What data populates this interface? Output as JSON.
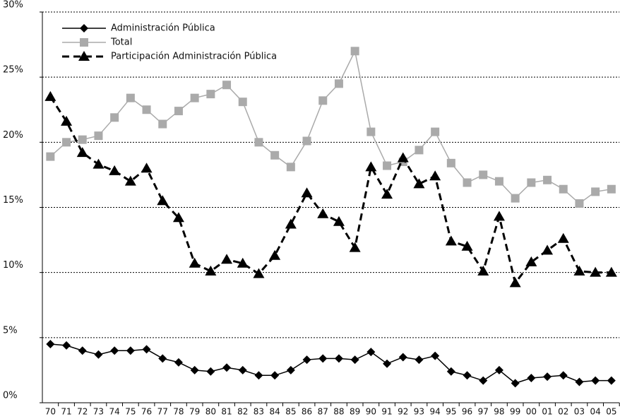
{
  "chart_data": {
    "type": "line",
    "categories": [
      "70",
      "71",
      "72",
      "73",
      "74",
      "75",
      "76",
      "77",
      "78",
      "79",
      "80",
      "81",
      "82",
      "83",
      "84",
      "85",
      "86",
      "87",
      "88",
      "89",
      "90",
      "91",
      "92",
      "93",
      "94",
      "95",
      "96",
      "97",
      "98",
      "99",
      "00",
      "01",
      "02",
      "03",
      "04",
      "05"
    ],
    "series": [
      {
        "name": "Administración Pública",
        "color": "#000000",
        "marker": "diamond",
        "dashed": false,
        "values": [
          4.5,
          4.4,
          4.0,
          3.7,
          4.0,
          4.0,
          4.1,
          3.4,
          3.1,
          2.5,
          2.4,
          2.7,
          2.5,
          2.1,
          2.1,
          2.5,
          3.3,
          3.4,
          3.4,
          3.3,
          3.9,
          3.0,
          3.5,
          3.3,
          3.6,
          2.4,
          2.1,
          1.7,
          2.5,
          1.5,
          1.9,
          2.0,
          2.1,
          1.6,
          1.7,
          1.7
        ]
      },
      {
        "name": "Total",
        "color": "#aaaaaa",
        "marker": "square",
        "dashed": false,
        "values": [
          18.9,
          20.0,
          20.2,
          20.5,
          21.9,
          23.4,
          22.5,
          21.4,
          22.4,
          23.4,
          23.7,
          24.4,
          23.1,
          20.0,
          19.0,
          18.1,
          20.1,
          23.2,
          24.5,
          27.0,
          20.8,
          18.2,
          18.5,
          19.4,
          20.8,
          18.4,
          16.9,
          17.5,
          17.0,
          15.7,
          16.9,
          17.1,
          16.4,
          15.3,
          16.2,
          16.4
        ]
      },
      {
        "name": "Participación Administración Pública",
        "color": "#000000",
        "marker": "triangle",
        "dashed": true,
        "values": [
          23.5,
          21.6,
          19.2,
          18.3,
          17.8,
          17.0,
          18.0,
          15.5,
          14.2,
          10.7,
          10.1,
          11.0,
          10.7,
          9.9,
          11.3,
          13.7,
          16.1,
          14.5,
          13.9,
          11.9,
          18.1,
          16.0,
          18.8,
          16.8,
          17.4,
          12.4,
          12.0,
          10.1,
          14.3,
          9.2,
          10.8,
          11.7,
          12.6,
          10.1,
          10.0,
          10.0
        ]
      }
    ],
    "ylim": [
      0,
      30
    ],
    "yticks": [
      {
        "value": 0,
        "label": "0%"
      },
      {
        "value": 5,
        "label": "5%"
      },
      {
        "value": 10,
        "label": "10%"
      },
      {
        "value": 15,
        "label": "15%"
      },
      {
        "value": 20,
        "label": "20%"
      },
      {
        "value": 25,
        "label": "25%"
      },
      {
        "value": 30,
        "label": "30%"
      }
    ],
    "grid": true,
    "legend": "top-left"
  }
}
